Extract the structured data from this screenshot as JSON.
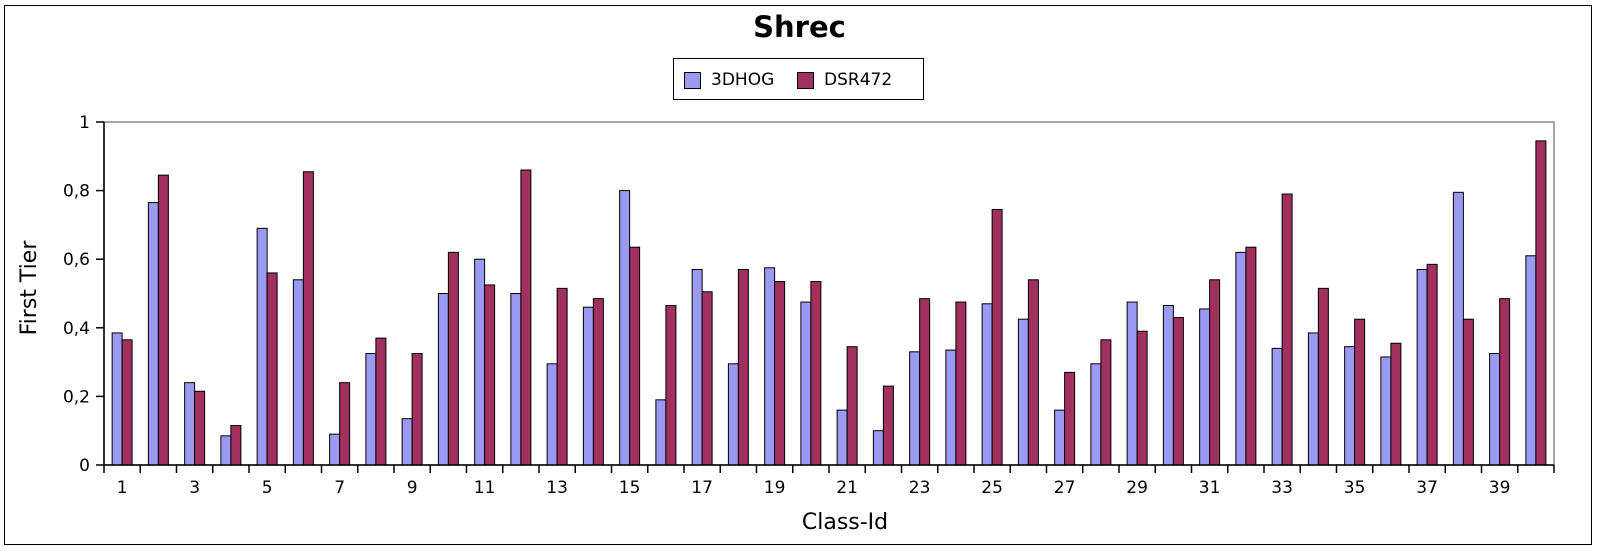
{
  "chart_data": {
    "type": "bar",
    "title": "Shrec",
    "xlabel": "Class-Id",
    "ylabel": "First Tier",
    "ylim": [
      0,
      1
    ],
    "yticks": [
      "0",
      "0,2",
      "0,4",
      "0,6",
      "0,8",
      "1"
    ],
    "categories": [
      "1",
      "2",
      "3",
      "4",
      "5",
      "6",
      "7",
      "8",
      "9",
      "10",
      "11",
      "12",
      "13",
      "14",
      "15",
      "16",
      "17",
      "18",
      "19",
      "20",
      "21",
      "22",
      "23",
      "24",
      "25",
      "26",
      "27",
      "28",
      "29",
      "30",
      "31",
      "32",
      "33",
      "34",
      "35",
      "36",
      "37",
      "38",
      "39",
      "40"
    ],
    "shown_tick_labels": [
      "1",
      "3",
      "5",
      "7",
      "9",
      "11",
      "13",
      "15",
      "17",
      "19",
      "21",
      "23",
      "25",
      "27",
      "29",
      "31",
      "33",
      "35",
      "37",
      "39"
    ],
    "legend_position": "top-center",
    "grid": false,
    "series": [
      {
        "name": "3DHOG",
        "color": "#9a9af2",
        "values": [
          0.385,
          0.765,
          0.24,
          0.085,
          0.69,
          0.54,
          0.09,
          0.325,
          0.135,
          0.5,
          0.6,
          0.5,
          0.295,
          0.46,
          0.8,
          0.19,
          0.57,
          0.295,
          0.575,
          0.475,
          0.16,
          0.1,
          0.33,
          0.335,
          0.47,
          0.425,
          0.16,
          0.295,
          0.475,
          0.465,
          0.455,
          0.62,
          0.34,
          0.385,
          0.345,
          0.315,
          0.57,
          0.795,
          0.325,
          0.61
        ]
      },
      {
        "name": "DSR472",
        "color": "#a0305e",
        "values": [
          0.365,
          0.845,
          0.215,
          0.115,
          0.56,
          0.855,
          0.24,
          0.37,
          0.325,
          0.62,
          0.525,
          0.86,
          0.515,
          0.485,
          0.635,
          0.465,
          0.505,
          0.57,
          0.535,
          0.535,
          0.345,
          0.23,
          0.485,
          0.475,
          0.745,
          0.54,
          0.27,
          0.365,
          0.39,
          0.43,
          0.54,
          0.635,
          0.79,
          0.515,
          0.425,
          0.355,
          0.585,
          0.425,
          0.485,
          0.945
        ]
      }
    ]
  }
}
